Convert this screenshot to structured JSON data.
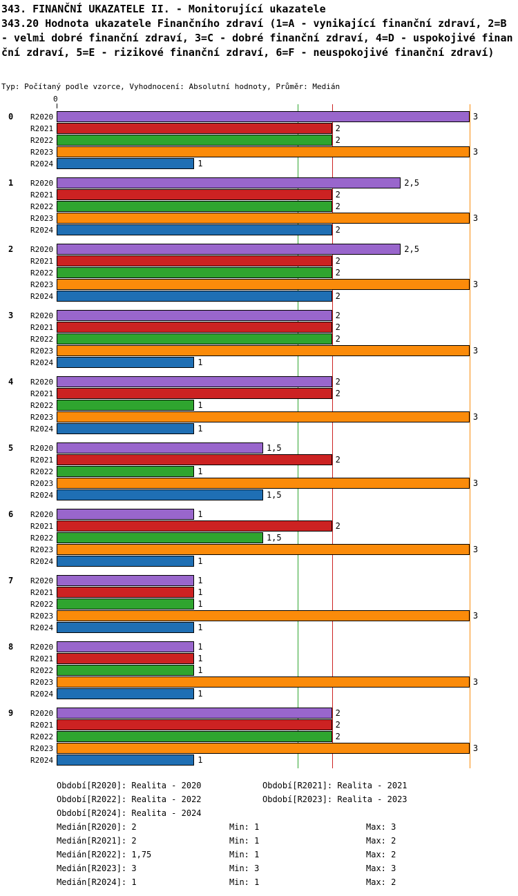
{
  "header": {
    "title1": "343. FINANČNÍ UKAZATELE II. - Monitorující ukazatele",
    "title2": "343.20 Hodnota ukazatele Finančního zdraví (1=A - vynikající finanční zdraví, 2=B - velmi dobré finanční zdraví, 3=C - dobré finanční zdraví, 4=D - uspokojivé finanční zdraví, 5=E - rizikové finanční zdraví, 6=F - neuspokojivé finanční zdraví)",
    "subtitle": "Typ: Počítaný podle vzorce, Vyhodnocení: Absolutní hodnoty, Průměr: Medián"
  },
  "axis": {
    "origin_label": "0"
  },
  "chart_data": {
    "type": "bar",
    "orientation": "horizontal",
    "title": "343.20 Hodnota ukazatele Finančního zdraví",
    "xlim": [
      0,
      3.35
    ],
    "grid": false,
    "categories": [
      "0",
      "1",
      "2",
      "3",
      "4",
      "5",
      "6",
      "7",
      "8",
      "9"
    ],
    "series": [
      {
        "name": "R2020",
        "color": "#9966CC"
      },
      {
        "name": "R2021",
        "color": "#CC2222"
      },
      {
        "name": "R2022",
        "color": "#2FA52F"
      },
      {
        "name": "R2023",
        "color": "#FB8B0A"
      },
      {
        "name": "R2024",
        "color": "#1F6FB4"
      }
    ],
    "groups": [
      {
        "category": "0",
        "bars": [
          {
            "value": 3,
            "label": "3"
          },
          {
            "value": 2,
            "label": "2"
          },
          {
            "value": 2,
            "label": "2"
          },
          {
            "value": 3,
            "label": "3"
          },
          {
            "value": 1,
            "label": "1"
          }
        ]
      },
      {
        "category": "1",
        "bars": [
          {
            "value": 2.5,
            "label": "2,5"
          },
          {
            "value": 2,
            "label": "2"
          },
          {
            "value": 2,
            "label": "2"
          },
          {
            "value": 3,
            "label": "3"
          },
          {
            "value": 2,
            "label": "2"
          }
        ]
      },
      {
        "category": "2",
        "bars": [
          {
            "value": 2.5,
            "label": "2,5"
          },
          {
            "value": 2,
            "label": "2"
          },
          {
            "value": 2,
            "label": "2"
          },
          {
            "value": 3,
            "label": "3"
          },
          {
            "value": 2,
            "label": "2"
          }
        ]
      },
      {
        "category": "3",
        "bars": [
          {
            "value": 2,
            "label": "2"
          },
          {
            "value": 2,
            "label": "2"
          },
          {
            "value": 2,
            "label": "2"
          },
          {
            "value": 3,
            "label": "3"
          },
          {
            "value": 1,
            "label": "1"
          }
        ]
      },
      {
        "category": "4",
        "bars": [
          {
            "value": 2,
            "label": "2"
          },
          {
            "value": 2,
            "label": "2"
          },
          {
            "value": 1,
            "label": "1"
          },
          {
            "value": 3,
            "label": "3"
          },
          {
            "value": 1,
            "label": "1"
          }
        ]
      },
      {
        "category": "5",
        "bars": [
          {
            "value": 1.5,
            "label": "1,5"
          },
          {
            "value": 2,
            "label": "2"
          },
          {
            "value": 1,
            "label": "1"
          },
          {
            "value": 3,
            "label": "3"
          },
          {
            "value": 1.5,
            "label": "1,5"
          }
        ]
      },
      {
        "category": "6",
        "bars": [
          {
            "value": 1,
            "label": "1"
          },
          {
            "value": 2,
            "label": "2"
          },
          {
            "value": 1.5,
            "label": "1,5"
          },
          {
            "value": 3,
            "label": "3"
          },
          {
            "value": 1,
            "label": "1"
          }
        ]
      },
      {
        "category": "7",
        "bars": [
          {
            "value": 1,
            "label": "1"
          },
          {
            "value": 1,
            "label": "1"
          },
          {
            "value": 1,
            "label": "1"
          },
          {
            "value": 3,
            "label": "3"
          },
          {
            "value": 1,
            "label": "1"
          }
        ]
      },
      {
        "category": "8",
        "bars": [
          {
            "value": 1,
            "label": "1"
          },
          {
            "value": 1,
            "label": "1"
          },
          {
            "value": 1,
            "label": "1"
          },
          {
            "value": 3,
            "label": "3"
          },
          {
            "value": 1,
            "label": "1"
          }
        ]
      },
      {
        "category": "9",
        "bars": [
          {
            "value": 2,
            "label": "2"
          },
          {
            "value": 2,
            "label": "2"
          },
          {
            "value": 2,
            "label": "2"
          },
          {
            "value": 3,
            "label": "3"
          },
          {
            "value": 1,
            "label": "1"
          }
        ]
      }
    ],
    "median_lines": [
      {
        "series": "R2022",
        "value": 1.75,
        "color": "#2FA52F"
      },
      {
        "series": "R2021",
        "value": 2,
        "color": "#CC2222"
      },
      {
        "series": "R2023",
        "value": 3,
        "color": "#FB8B0A"
      }
    ],
    "statistics": {
      "medians": {
        "R2020": "2",
        "R2021": "2",
        "R2022": "1,75",
        "R2023": "3",
        "R2024": "1"
      },
      "mins": {
        "R2020": "1",
        "R2021": "1",
        "R2022": "1",
        "R2023": "3",
        "R2024": "1"
      },
      "maxs": {
        "R2020": "3",
        "R2021": "2",
        "R2022": "2",
        "R2023": "3",
        "R2024": "2"
      }
    }
  },
  "legend": {
    "period_rows": [
      [
        "Období[R2020]: Realita - 2020",
        "Období[R2021]: Realita - 2021"
      ],
      [
        "Období[R2022]: Realita - 2022",
        "Období[R2023]: Realita - 2023"
      ],
      [
        "Období[R2024]: Realita - 2024"
      ]
    ],
    "stat_rows": [
      [
        "Medián[R2020]: 2",
        "Min: 1",
        "Max: 3"
      ],
      [
        "Medián[R2021]: 2",
        "Min: 1",
        "Max: 2"
      ],
      [
        "Medián[R2022]: 1,75",
        "Min: 1",
        "Max: 2"
      ],
      [
        "Medián[R2023]: 3",
        "Min: 3",
        "Max: 3"
      ],
      [
        "Medián[R2024]: 1",
        "Min: 1",
        "Max: 2"
      ]
    ]
  }
}
